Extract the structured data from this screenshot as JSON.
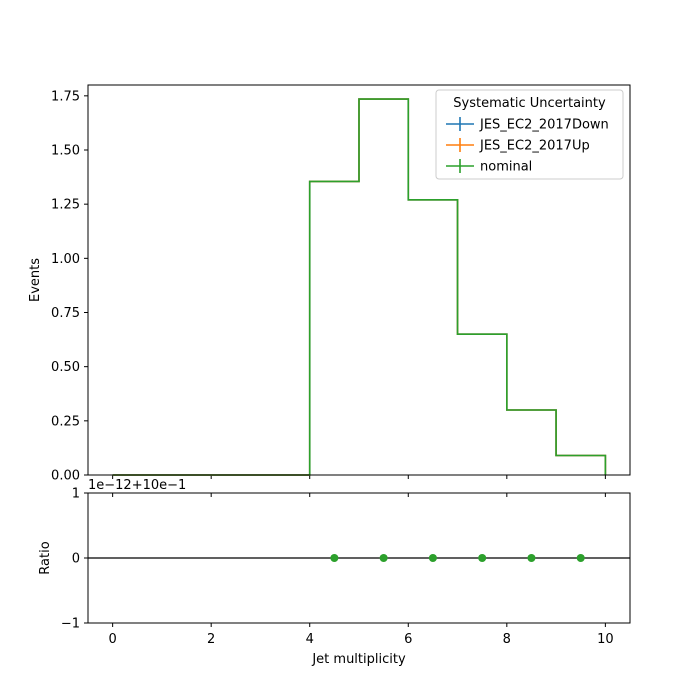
{
  "chart_data": [
    {
      "type": "line",
      "subtype": "step-histogram",
      "ylabel": "Events",
      "xlim": [
        -0.5,
        10.5
      ],
      "ylim": [
        0,
        1.8
      ],
      "yticks": [
        "0.00",
        "0.25",
        "0.50",
        "0.75",
        "1.00",
        "1.25",
        "1.50",
        "1.75"
      ],
      "bin_edges": [
        0,
        1,
        2,
        3,
        4,
        5,
        6,
        7,
        8,
        9,
        10
      ],
      "series": [
        {
          "name": "JES_EC2_2017Down",
          "color": "#1f77b4",
          "values": [
            0,
            0,
            0,
            0,
            1.355,
            1.735,
            1.27,
            0.65,
            0.3,
            0.09
          ]
        },
        {
          "name": "JES_EC2_2017Up",
          "color": "#ff7f0e",
          "values": [
            0,
            0,
            0,
            0,
            1.355,
            1.735,
            1.27,
            0.65,
            0.3,
            0.09
          ]
        },
        {
          "name": "nominal",
          "color": "#2ca02c",
          "values": [
            0,
            0,
            0,
            0,
            1.355,
            1.735,
            1.27,
            0.65,
            0.3,
            0.09
          ]
        }
      ],
      "legend": {
        "title": "Systematic Uncertainty",
        "placement": "top-right"
      }
    },
    {
      "type": "scatter",
      "ylabel": "Ratio",
      "xlabel": "Jet multiplicity",
      "xlim": [
        -0.5,
        10.5
      ],
      "ylim": [
        -1,
        1
      ],
      "xticks": [
        "0",
        "2",
        "4",
        "6",
        "8",
        "10"
      ],
      "yticks": [
        "−1",
        "0",
        "1"
      ],
      "offset_text": "1e−12+10e−1",
      "reference_line": 0,
      "series": [
        {
          "name": "nominal",
          "color": "#2ca02c",
          "x": [
            4.5,
            5.5,
            6.5,
            7.5,
            8.5,
            9.5
          ],
          "y": [
            0,
            0,
            0,
            0,
            0,
            0
          ]
        }
      ]
    }
  ]
}
